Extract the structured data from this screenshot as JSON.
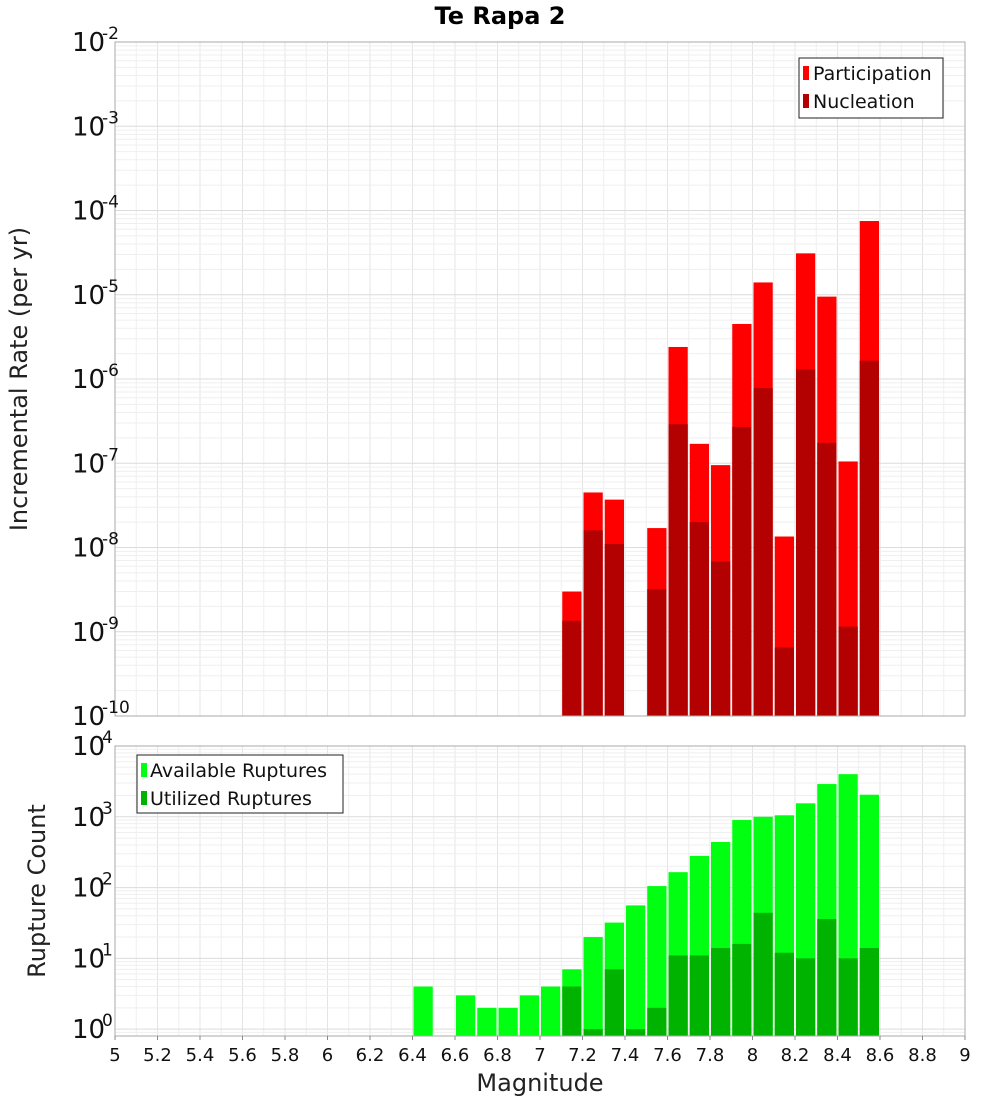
{
  "title": "Te Rapa 2",
  "xlabel": "Magnitude",
  "chart_data": [
    {
      "type": "bar",
      "ylabel": "Incremental Rate (per yr)",
      "yscale": "log",
      "ylim": [
        1e-10,
        0.01
      ],
      "xlim": [
        5,
        9
      ],
      "grid": true,
      "legend_position": "top-right",
      "colors": {
        "Participation": "#ff0000",
        "Nucleation": "#b30000"
      },
      "series": [
        {
          "name": "Participation",
          "x": [
            7.1,
            7.2,
            7.3,
            7.5,
            7.6,
            7.7,
            7.8,
            7.9,
            8.0,
            8.1,
            8.2,
            8.3,
            8.4,
            8.5
          ],
          "values": [
            3e-09,
            4.5e-08,
            3.7e-08,
            1.7e-08,
            2.4e-06,
            1.7e-07,
            9.5e-08,
            4.5e-06,
            1.4e-05,
            1.35e-08,
            3.1e-05,
            9.5e-06,
            1.05e-07,
            7.5e-05
          ]
        },
        {
          "name": "Nucleation",
          "x": [
            7.1,
            7.2,
            7.3,
            7.5,
            7.6,
            7.7,
            7.8,
            7.9,
            8.0,
            8.1,
            8.2,
            8.3,
            8.4,
            8.5
          ],
          "values": [
            1.35e-09,
            1.6e-08,
            1.1e-08,
            3.2e-09,
            2.9e-07,
            2e-08,
            6.8e-09,
            2.7e-07,
            7.8e-07,
            6.5e-10,
            1.3e-06,
            1.75e-07,
            1.15e-09,
            1.65e-06
          ]
        }
      ]
    },
    {
      "type": "bar",
      "ylabel": "Rupture Count",
      "yscale": "log",
      "ylim": [
        0.8,
        10000
      ],
      "xlim": [
        5,
        9
      ],
      "grid": true,
      "legend_position": "top-left",
      "colors": {
        "Available Ruptures": "#00ff10",
        "Utilized Ruptures": "#00b300"
      },
      "series": [
        {
          "name": "Available Ruptures",
          "x": [
            6.4,
            6.6,
            6.7,
            6.8,
            6.9,
            7.0,
            7.1,
            7.2,
            7.3,
            7.4,
            7.5,
            7.6,
            7.7,
            7.8,
            7.9,
            8.0,
            8.1,
            8.2,
            8.3,
            8.4,
            8.5
          ],
          "values": [
            4,
            3,
            2,
            2,
            3,
            4,
            7,
            20,
            32,
            56,
            105,
            165,
            280,
            440,
            900,
            1000,
            1050,
            1550,
            2900,
            4000,
            2050
          ]
        },
        {
          "name": "Utilized Ruptures",
          "x": [
            7.1,
            7.2,
            7.3,
            7.4,
            7.5,
            7.6,
            7.7,
            7.8,
            7.9,
            8.0,
            8.1,
            8.2,
            8.3,
            8.4,
            8.5
          ],
          "values": [
            4,
            1,
            7,
            1,
            2,
            11,
            11,
            14,
            16,
            44,
            12,
            10,
            36,
            10,
            14
          ]
        }
      ]
    }
  ],
  "x_ticks": [
    "5",
    "5.2",
    "5.4",
    "5.6",
    "5.8",
    "6",
    "6.2",
    "6.4",
    "6.6",
    "6.8",
    "7",
    "7.2",
    "7.4",
    "7.6",
    "7.8",
    "8",
    "8.2",
    "8.4",
    "8.6",
    "8.8",
    "9"
  ],
  "top_y_exponents": [
    "-10",
    "-9",
    "-8",
    "-7",
    "-6",
    "-5",
    "-4",
    "-3",
    "-2"
  ],
  "bottom_y_exponents": [
    "0",
    "1",
    "2",
    "3",
    "4"
  ],
  "y_base": "10"
}
